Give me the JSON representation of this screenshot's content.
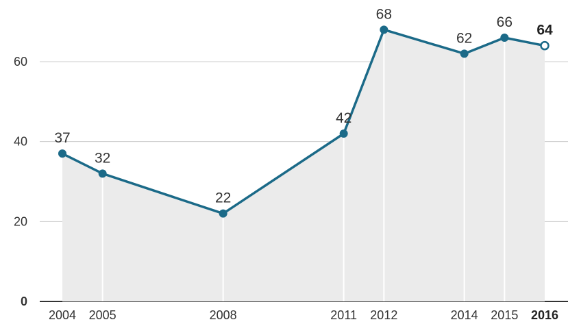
{
  "chart_data": {
    "type": "area",
    "x": [
      2004,
      2005,
      2008,
      2011,
      2012,
      2014,
      2015,
      2016
    ],
    "x_labels": [
      "2004",
      "2005",
      "2008",
      "2011",
      "2012",
      "2014",
      "2015",
      "2016"
    ],
    "values": [
      37,
      32,
      22,
      42,
      68,
      62,
      66,
      64
    ],
    "data_labels": [
      "37",
      "32",
      "22",
      "42",
      "68",
      "62",
      "66",
      "64"
    ],
    "highlight_last": true,
    "ylim": [
      0,
      72
    ],
    "yticks": [
      0,
      20,
      40,
      60
    ],
    "ytick_labels": [
      "0",
      "20",
      "40",
      "60"
    ],
    "grid": true,
    "colors": {
      "line": "#1b6a88",
      "area": "#ebebeb",
      "grid": "#cccccc",
      "baseline": "#333333",
      "dropline": "#ffffff"
    }
  }
}
